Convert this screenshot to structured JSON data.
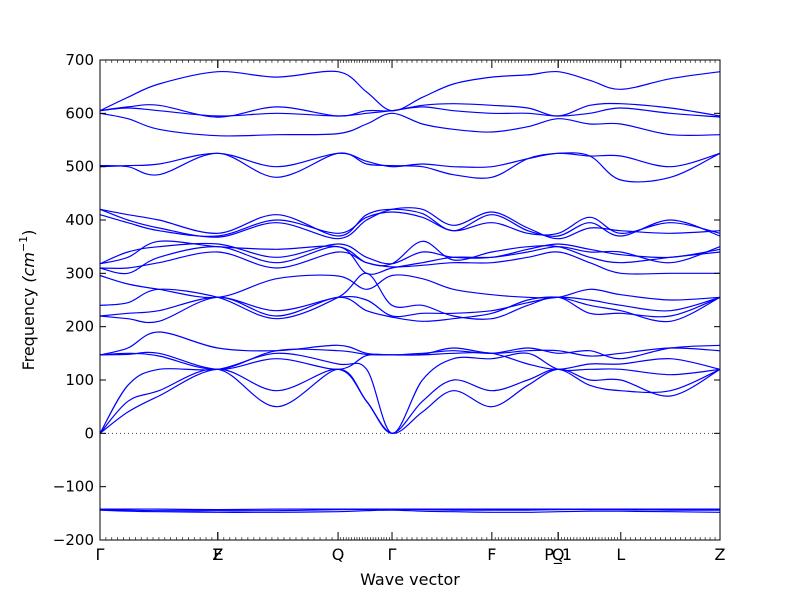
{
  "chart_data": {
    "type": "line",
    "title": "",
    "xlabel": "Wave vector",
    "ylabel": "Frequency",
    "ylabel_unit": "(cm",
    "ylabel_unit_sup": "−1",
    "ylabel_unit_close": ")",
    "ylim": [
      -200,
      700
    ],
    "yticks": [
      -200,
      -100,
      0,
      100,
      200,
      300,
      400,
      500,
      600,
      700
    ],
    "ytick_labels": [
      "−200",
      "−100",
      "0",
      "100",
      "200",
      "300",
      "400",
      "500",
      "600",
      "700"
    ],
    "xlim": [
      0,
      1
    ],
    "kpoints": [
      {
        "x": 0.0,
        "label": "Γ"
      },
      {
        "x": 0.19,
        "label": "F"
      },
      {
        "x": 0.19,
        "label": "Z"
      },
      {
        "x": 0.384,
        "label": "Q"
      },
      {
        "x": 0.471,
        "label": "Γ"
      },
      {
        "x": 0.632,
        "label": "F"
      },
      {
        "x": 0.739,
        "label": "P_1"
      },
      {
        "x": 0.739,
        "label": "Q"
      },
      {
        "x": 0.84,
        "label": "L"
      },
      {
        "x": 1.0,
        "label": "Z"
      }
    ],
    "zero_line": true,
    "line_color": "#0000ff",
    "series_x": [
      0,
      0.045,
      0.095,
      0.19,
      0.285,
      0.384,
      0.43,
      0.471,
      0.52,
      0.57,
      0.632,
      0.69,
      0.739,
      0.79,
      0.84,
      0.92,
      1.0
    ],
    "series": [
      {
        "values": [
          -143,
          -144,
          -145,
          -145,
          -145,
          -143,
          -143,
          -143,
          -143,
          -144,
          -144,
          -144,
          -143,
          -143,
          -143,
          -144,
          -144
        ]
      },
      {
        "values": [
          -144,
          -146,
          -147,
          -148,
          -148,
          -147,
          -145,
          -144,
          -146,
          -147,
          -148,
          -148,
          -147,
          -146,
          -146,
          -147,
          -148
        ]
      },
      {
        "values": [
          -142,
          -142,
          -142,
          -143,
          -142,
          -142,
          -142,
          -142,
          -142,
          -142,
          -142,
          -142,
          -142,
          -142,
          -142,
          -142,
          -142
        ]
      },
      {
        "values": [
          0,
          40,
          70,
          120,
          80,
          120,
          60,
          0,
          60,
          100,
          80,
          100,
          120,
          90,
          80,
          80,
          120
        ]
      },
      {
        "values": [
          0,
          60,
          80,
          120,
          50,
          120,
          60,
          0,
          40,
          80,
          50,
          90,
          120,
          100,
          100,
          70,
          120
        ]
      },
      {
        "values": [
          0,
          90,
          120,
          120,
          150,
          130,
          120,
          0,
          100,
          140,
          140,
          150,
          120,
          120,
          120,
          110,
          120
        ]
      },
      {
        "values": [
          147,
          148,
          150,
          120,
          140,
          120,
          146,
          147,
          147,
          150,
          150,
          130,
          120,
          130,
          130,
          140,
          120
        ]
      },
      {
        "values": [
          147,
          150,
          145,
          120,
          155,
          155,
          148,
          147,
          148,
          160,
          150,
          155,
          155,
          145,
          150,
          160,
          155
        ]
      },
      {
        "values": [
          147,
          160,
          190,
          160,
          155,
          165,
          150,
          147,
          150,
          155,
          150,
          160,
          150,
          155,
          140,
          160,
          165
        ]
      },
      {
        "values": [
          220,
          215,
          210,
          255,
          220,
          255,
          230,
          218,
          210,
          215,
          225,
          250,
          255,
          240,
          230,
          210,
          255
        ]
      },
      {
        "values": [
          220,
          225,
          230,
          255,
          230,
          255,
          250,
          220,
          225,
          225,
          230,
          245,
          255,
          250,
          240,
          230,
          255
        ]
      },
      {
        "values": [
          240,
          245,
          270,
          255,
          215,
          255,
          300,
          240,
          240,
          220,
          215,
          240,
          255,
          225,
          225,
          220,
          255
        ]
      },
      {
        "values": [
          296,
          280,
          270,
          255,
          290,
          295,
          270,
          296,
          290,
          270,
          260,
          255,
          255,
          270,
          260,
          250,
          255
        ]
      },
      {
        "values": [
          310,
          300,
          330,
          350,
          320,
          350,
          300,
          310,
          320,
          330,
          330,
          340,
          350,
          340,
          340,
          320,
          350
        ]
      },
      {
        "values": [
          310,
          310,
          320,
          340,
          310,
          340,
          320,
          312,
          315,
          320,
          320,
          330,
          340,
          320,
          300,
          300,
          300
        ]
      },
      {
        "values": [
          318,
          340,
          350,
          355,
          330,
          355,
          330,
          318,
          340,
          330,
          330,
          345,
          355,
          345,
          335,
          330,
          345
        ]
      },
      {
        "values": [
          318,
          330,
          360,
          350,
          345,
          350,
          320,
          318,
          360,
          325,
          340,
          350,
          350,
          330,
          320,
          330,
          340
        ]
      },
      {
        "values": [
          420,
          410,
          400,
          375,
          410,
          370,
          410,
          420,
          412,
          380,
          410,
          380,
          370,
          395,
          370,
          400,
          370
        ]
      },
      {
        "values": [
          410,
          395,
          380,
          370,
          400,
          375,
          405,
          415,
          405,
          380,
          395,
          375,
          375,
          405,
          375,
          395,
          375
        ]
      },
      {
        "values": [
          420,
          400,
          385,
          368,
          395,
          365,
          400,
          420,
          420,
          390,
          415,
          385,
          365,
          385,
          380,
          375,
          380
        ]
      },
      {
        "values": [
          500,
          502,
          505,
          525,
          500,
          525,
          510,
          500,
          505,
          500,
          500,
          515,
          525,
          520,
          475,
          480,
          525
        ]
      },
      {
        "values": [
          502,
          500,
          485,
          525,
          480,
          525,
          505,
          502,
          500,
          485,
          480,
          515,
          525,
          520,
          520,
          500,
          525
        ]
      },
      {
        "values": [
          600,
          590,
          570,
          558,
          560,
          562,
          580,
          600,
          580,
          570,
          565,
          575,
          590,
          580,
          580,
          560,
          560
        ]
      },
      {
        "values": [
          605,
          610,
          605,
          595,
          600,
          595,
          600,
          605,
          612,
          605,
          600,
          600,
          595,
          600,
          610,
          600,
          593
        ]
      },
      {
        "values": [
          605,
          612,
          615,
          593,
          612,
          595,
          605,
          605,
          615,
          618,
          615,
          610,
          595,
          615,
          618,
          610,
          595
        ]
      },
      {
        "values": [
          605,
          630,
          655,
          678,
          668,
          678,
          640,
          605,
          630,
          655,
          668,
          672,
          678,
          662,
          645,
          665,
          678
        ]
      }
    ]
  }
}
